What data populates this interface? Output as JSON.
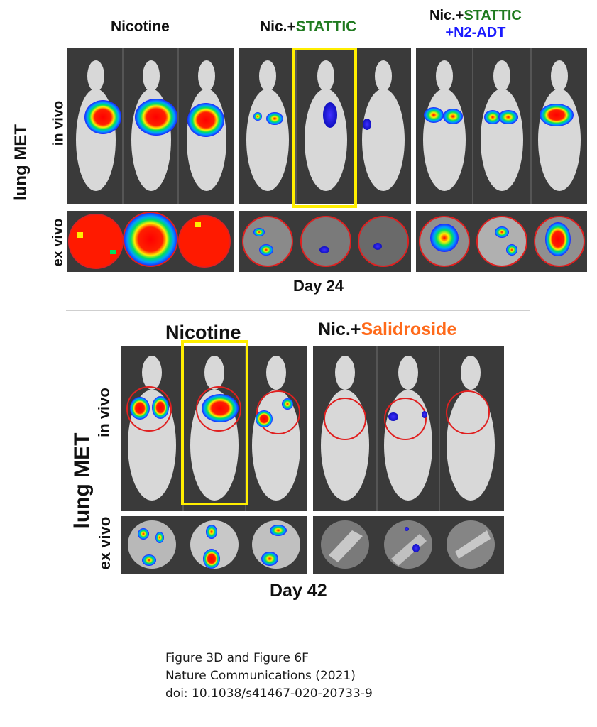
{
  "top": {
    "groups": [
      {
        "label": "Nicotine",
        "label_suffix": "",
        "suffix_line2": ""
      },
      {
        "label": "Nic.+",
        "label_suffix": "STATTIC",
        "suffix_line2": ""
      },
      {
        "label": "Nic.+",
        "label_suffix": "STATTIC",
        "suffix_line2": "+N2-ADT"
      }
    ],
    "side_main": "lung MET",
    "side_invivo": "in vivo",
    "side_exvivo": "ex vivo",
    "day": "Day 24"
  },
  "bottom": {
    "groups": [
      {
        "label": "Nicotine",
        "label_suffix": ""
      },
      {
        "label": "Nic.+",
        "label_suffix": "Salidroside"
      }
    ],
    "side_main": "lung MET",
    "side_invivo": "in vivo",
    "side_exvivo": "ex vivo",
    "day": "Day 42"
  },
  "caption": {
    "line1": "Figure 3D and Figure 6F",
    "line2": "Nature Communications (2021)",
    "line3": "doi: 10.1038/s41467-020-20733-9"
  },
  "colors": {
    "stattic": "#1f7a1f",
    "n2adt": "#1a1aff",
    "salidroside": "#ff6a1a",
    "highlight": "#ffee00",
    "ring": "#e02020"
  }
}
